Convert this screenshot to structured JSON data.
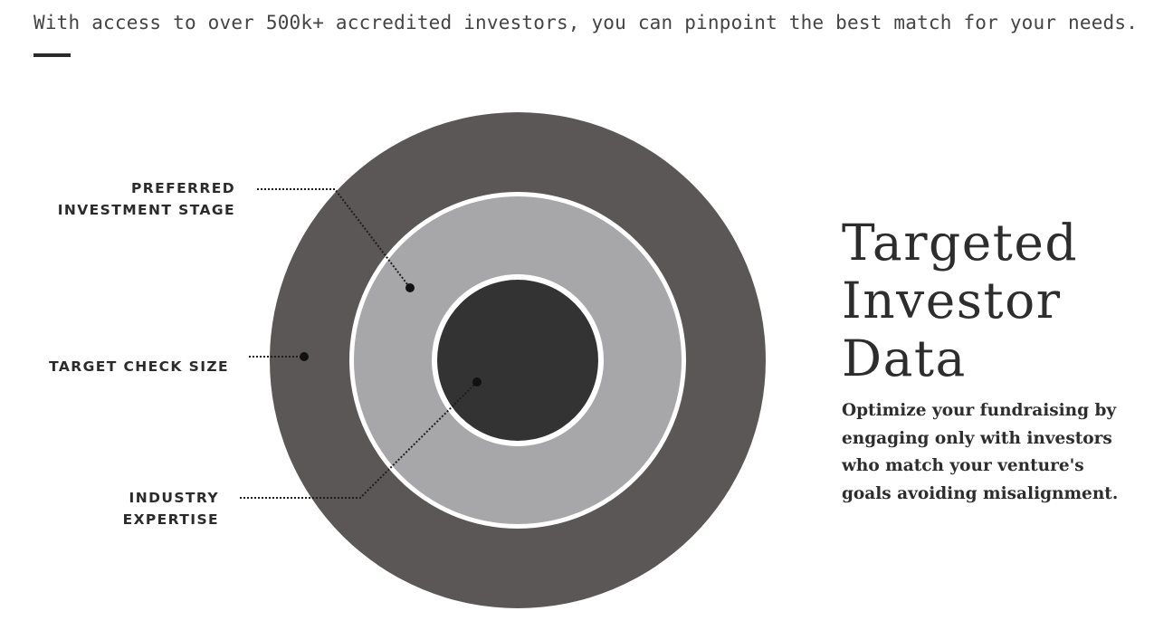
{
  "intro_text": "With access to over 500k+ accredited investors, you can pinpoint the best match for your needs.",
  "labels": {
    "preferred_stage": [
      "PREFERRED",
      "INVESTMENT STAGE"
    ],
    "check_size": "TARGET CHECK SIZE",
    "industry": [
      "INDUSTRY",
      "EXPERTISE"
    ]
  },
  "heading_lines": [
    "Targeted",
    "Investor",
    "Data"
  ],
  "description_lines": [
    "Optimize your fundraising by",
    "engaging only with investors",
    "who match your venture's",
    "goals avoiding misalignment."
  ],
  "colors": {
    "outer_ring": "#5b5756",
    "middle_ring": "#a7a7aa",
    "inner_core": "#333333",
    "separator": "#ffffff",
    "leader": "#1e1e1e"
  }
}
